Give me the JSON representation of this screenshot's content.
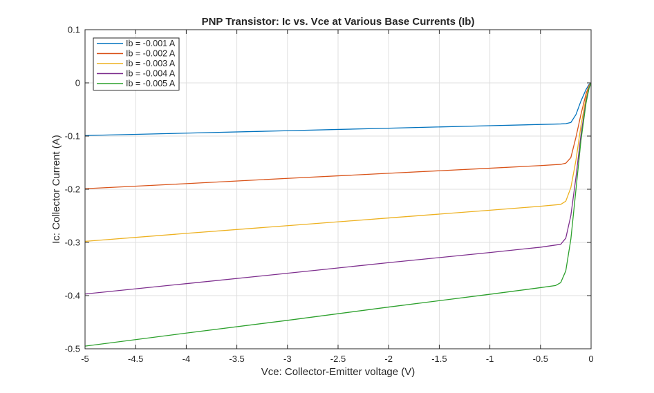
{
  "chart_data": {
    "type": "line",
    "title": "PNP Transistor: Ic vs. Vce at Various Base Currents (Ib)",
    "xlabel": "Vce: Collector-Emitter voltage (V)",
    "ylabel": "Ic: Collector Current (A)",
    "xlim": [
      -5,
      0
    ],
    "ylim": [
      -0.5,
      0.1
    ],
    "xticks": [
      -5,
      -4.5,
      -4,
      -3.5,
      -3,
      -2.5,
      -2,
      -1.5,
      -1,
      -0.5,
      0
    ],
    "xtick_labels": [
      "-5",
      "-4.5",
      "-4",
      "-3.5",
      "-3",
      "-2.5",
      "-2",
      "-1.5",
      "-1",
      "-0.5",
      "0"
    ],
    "yticks": [
      -0.5,
      -0.4,
      -0.3,
      -0.2,
      -0.1,
      0,
      0.1
    ],
    "ytick_labels": [
      "-0.5",
      "-0.4",
      "-0.3",
      "-0.2",
      "-0.1",
      "0",
      "0.1"
    ],
    "grid": true,
    "legend_position": "top-left",
    "series": [
      {
        "name": "Ib = -0.001 A",
        "color": "#0072bd",
        "x": [
          -5,
          -4,
          -3,
          -2,
          -1,
          -0.5,
          -0.3,
          -0.25,
          -0.2,
          -0.15,
          -0.1,
          -0.05,
          -0.02,
          0
        ],
        "y": [
          -0.099,
          -0.0945,
          -0.0899,
          -0.0852,
          -0.0805,
          -0.0782,
          -0.0772,
          -0.0766,
          -0.0745,
          -0.0598,
          -0.034,
          -0.0125,
          -0.003,
          0
        ]
      },
      {
        "name": "Ib = -0.002 A",
        "color": "#d95319",
        "x": [
          -5,
          -4,
          -3,
          -2,
          -1,
          -0.5,
          -0.3,
          -0.25,
          -0.2,
          -0.15,
          -0.1,
          -0.05,
          -0.02,
          0
        ],
        "y": [
          -0.199,
          -0.1895,
          -0.1795,
          -0.17,
          -0.1605,
          -0.1555,
          -0.1532,
          -0.151,
          -0.1405,
          -0.1025,
          -0.059,
          -0.0205,
          -0.005,
          0
        ]
      },
      {
        "name": "Ib = -0.003 A",
        "color": "#edb120",
        "x": [
          -5,
          -4,
          -3,
          -2,
          -1,
          -0.5,
          -0.3,
          -0.25,
          -0.2,
          -0.15,
          -0.1,
          -0.05,
          -0.02,
          0
        ],
        "y": [
          -0.298,
          -0.283,
          -0.2685,
          -0.254,
          -0.2395,
          -0.232,
          -0.2285,
          -0.2225,
          -0.197,
          -0.146,
          -0.08,
          -0.028,
          -0.007,
          0
        ]
      },
      {
        "name": "Ib = -0.004 A",
        "color": "#7e2f8e",
        "x": [
          -5,
          -4,
          -3,
          -2,
          -1,
          -0.5,
          -0.3,
          -0.25,
          -0.2,
          -0.15,
          -0.1,
          -0.05,
          -0.02,
          0
        ],
        "y": [
          -0.397,
          -0.3775,
          -0.358,
          -0.338,
          -0.319,
          -0.309,
          -0.3035,
          -0.292,
          -0.2495,
          -0.178,
          -0.0975,
          -0.034,
          -0.009,
          0
        ]
      },
      {
        "name": "Ib = -0.005 A",
        "color": "#2ca02c",
        "x": [
          -5,
          -4,
          -3,
          -2,
          -1,
          -0.5,
          -0.35,
          -0.3,
          -0.25,
          -0.2,
          -0.15,
          -0.1,
          -0.05,
          -0.02,
          0
        ],
        "y": [
          -0.495,
          -0.4705,
          -0.4465,
          -0.4215,
          -0.3975,
          -0.385,
          -0.381,
          -0.3755,
          -0.3535,
          -0.294,
          -0.2015,
          -0.108,
          -0.038,
          -0.01,
          0
        ]
      }
    ]
  }
}
